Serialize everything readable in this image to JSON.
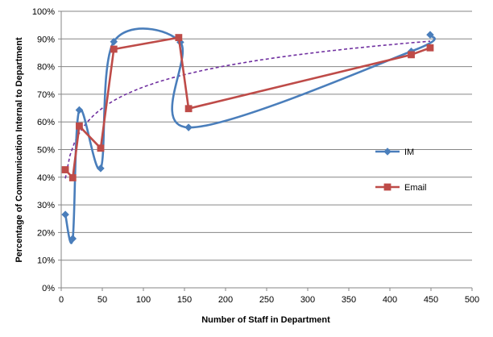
{
  "chart_data": {
    "type": "line",
    "title": "",
    "xlabel": "Number of Staff in Department",
    "ylabel": "Percentage of Communication  Internal to Department",
    "xlim": [
      0,
      500
    ],
    "ylim": [
      0,
      1
    ],
    "x_ticks": [
      "0",
      "50",
      "100",
      "150",
      "200",
      "250",
      "300",
      "350",
      "400",
      "450",
      "500"
    ],
    "y_ticks": [
      "0%",
      "10%",
      "20%",
      "30%",
      "40%",
      "50%",
      "60%",
      "70%",
      "80%",
      "90%",
      "100%"
    ],
    "grid": "horizontal",
    "legend_position": "right",
    "series": [
      {
        "name": "IM",
        "color": "#4a7ebb",
        "marker": "diamond",
        "smoothed": true,
        "x": [
          5,
          14,
          22,
          48,
          64,
          145,
          155,
          426,
          449
        ],
        "y": [
          0.265,
          0.178,
          0.643,
          0.432,
          0.89,
          0.888,
          0.58,
          0.855,
          0.915
        ]
      },
      {
        "name": "Email",
        "color": "#be4b48",
        "marker": "square",
        "smoothed": false,
        "x": [
          5,
          14,
          22,
          48,
          64,
          143,
          155,
          426,
          449
        ],
        "y": [
          0.427,
          0.398,
          0.585,
          0.505,
          0.863,
          0.905,
          0.648,
          0.843,
          0.868
        ]
      }
    ],
    "trendline": {
      "style": "dashed",
      "color": "#7030a0",
      "kind": "logarithmic",
      "x_range": [
        5,
        449
      ],
      "a": 0.1103,
      "b": 0.2182
    }
  }
}
